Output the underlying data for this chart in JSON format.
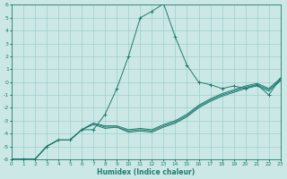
{
  "xlabel": "Humidex (Indice chaleur)",
  "xlim": [
    0,
    23
  ],
  "ylim": [
    -6,
    6
  ],
  "yticks": [
    -6,
    -5,
    -4,
    -3,
    -2,
    -1,
    0,
    1,
    2,
    3,
    4,
    5,
    6
  ],
  "xticks": [
    0,
    1,
    2,
    3,
    4,
    5,
    6,
    7,
    8,
    9,
    10,
    11,
    12,
    13,
    14,
    15,
    16,
    17,
    18,
    19,
    20,
    21,
    22,
    23
  ],
  "background_color": "#cce8e6",
  "grid_color": "#9ecece",
  "line_color": "#1e7b6e",
  "spike_line": [
    -6,
    -6,
    -6,
    -5,
    -4.5,
    -4.5,
    -3.7,
    -3.7,
    -2.5,
    -0.5,
    2.0,
    5.0,
    5.5,
    6.1,
    3.5,
    1.3,
    0.0,
    -0.2,
    -0.5,
    -0.3,
    -0.5,
    -0.2,
    -1.0,
    0.3
  ],
  "flat_lines": [
    [
      -6,
      -6,
      -6,
      -5,
      -4.5,
      -4.5,
      -3.7,
      -3.2,
      -3.4,
      -3.4,
      -3.7,
      -3.6,
      -3.7,
      -3.3,
      -3.0,
      -2.5,
      -1.8,
      -1.3,
      -0.9,
      -0.6,
      -0.3,
      -0.1,
      -0.5,
      0.3
    ],
    [
      -6,
      -6,
      -6,
      -5,
      -4.5,
      -4.5,
      -3.7,
      -3.2,
      -3.5,
      -3.5,
      -3.8,
      -3.7,
      -3.8,
      -3.4,
      -3.1,
      -2.6,
      -1.9,
      -1.4,
      -1.0,
      -0.7,
      -0.4,
      -0.2,
      -0.6,
      0.2
    ],
    [
      -6,
      -6,
      -6,
      -5,
      -4.5,
      -4.5,
      -3.7,
      -3.3,
      -3.6,
      -3.5,
      -3.9,
      -3.8,
      -3.9,
      -3.5,
      -3.2,
      -2.7,
      -2.0,
      -1.5,
      -1.1,
      -0.8,
      -0.5,
      -0.3,
      -0.7,
      0.1
    ]
  ]
}
